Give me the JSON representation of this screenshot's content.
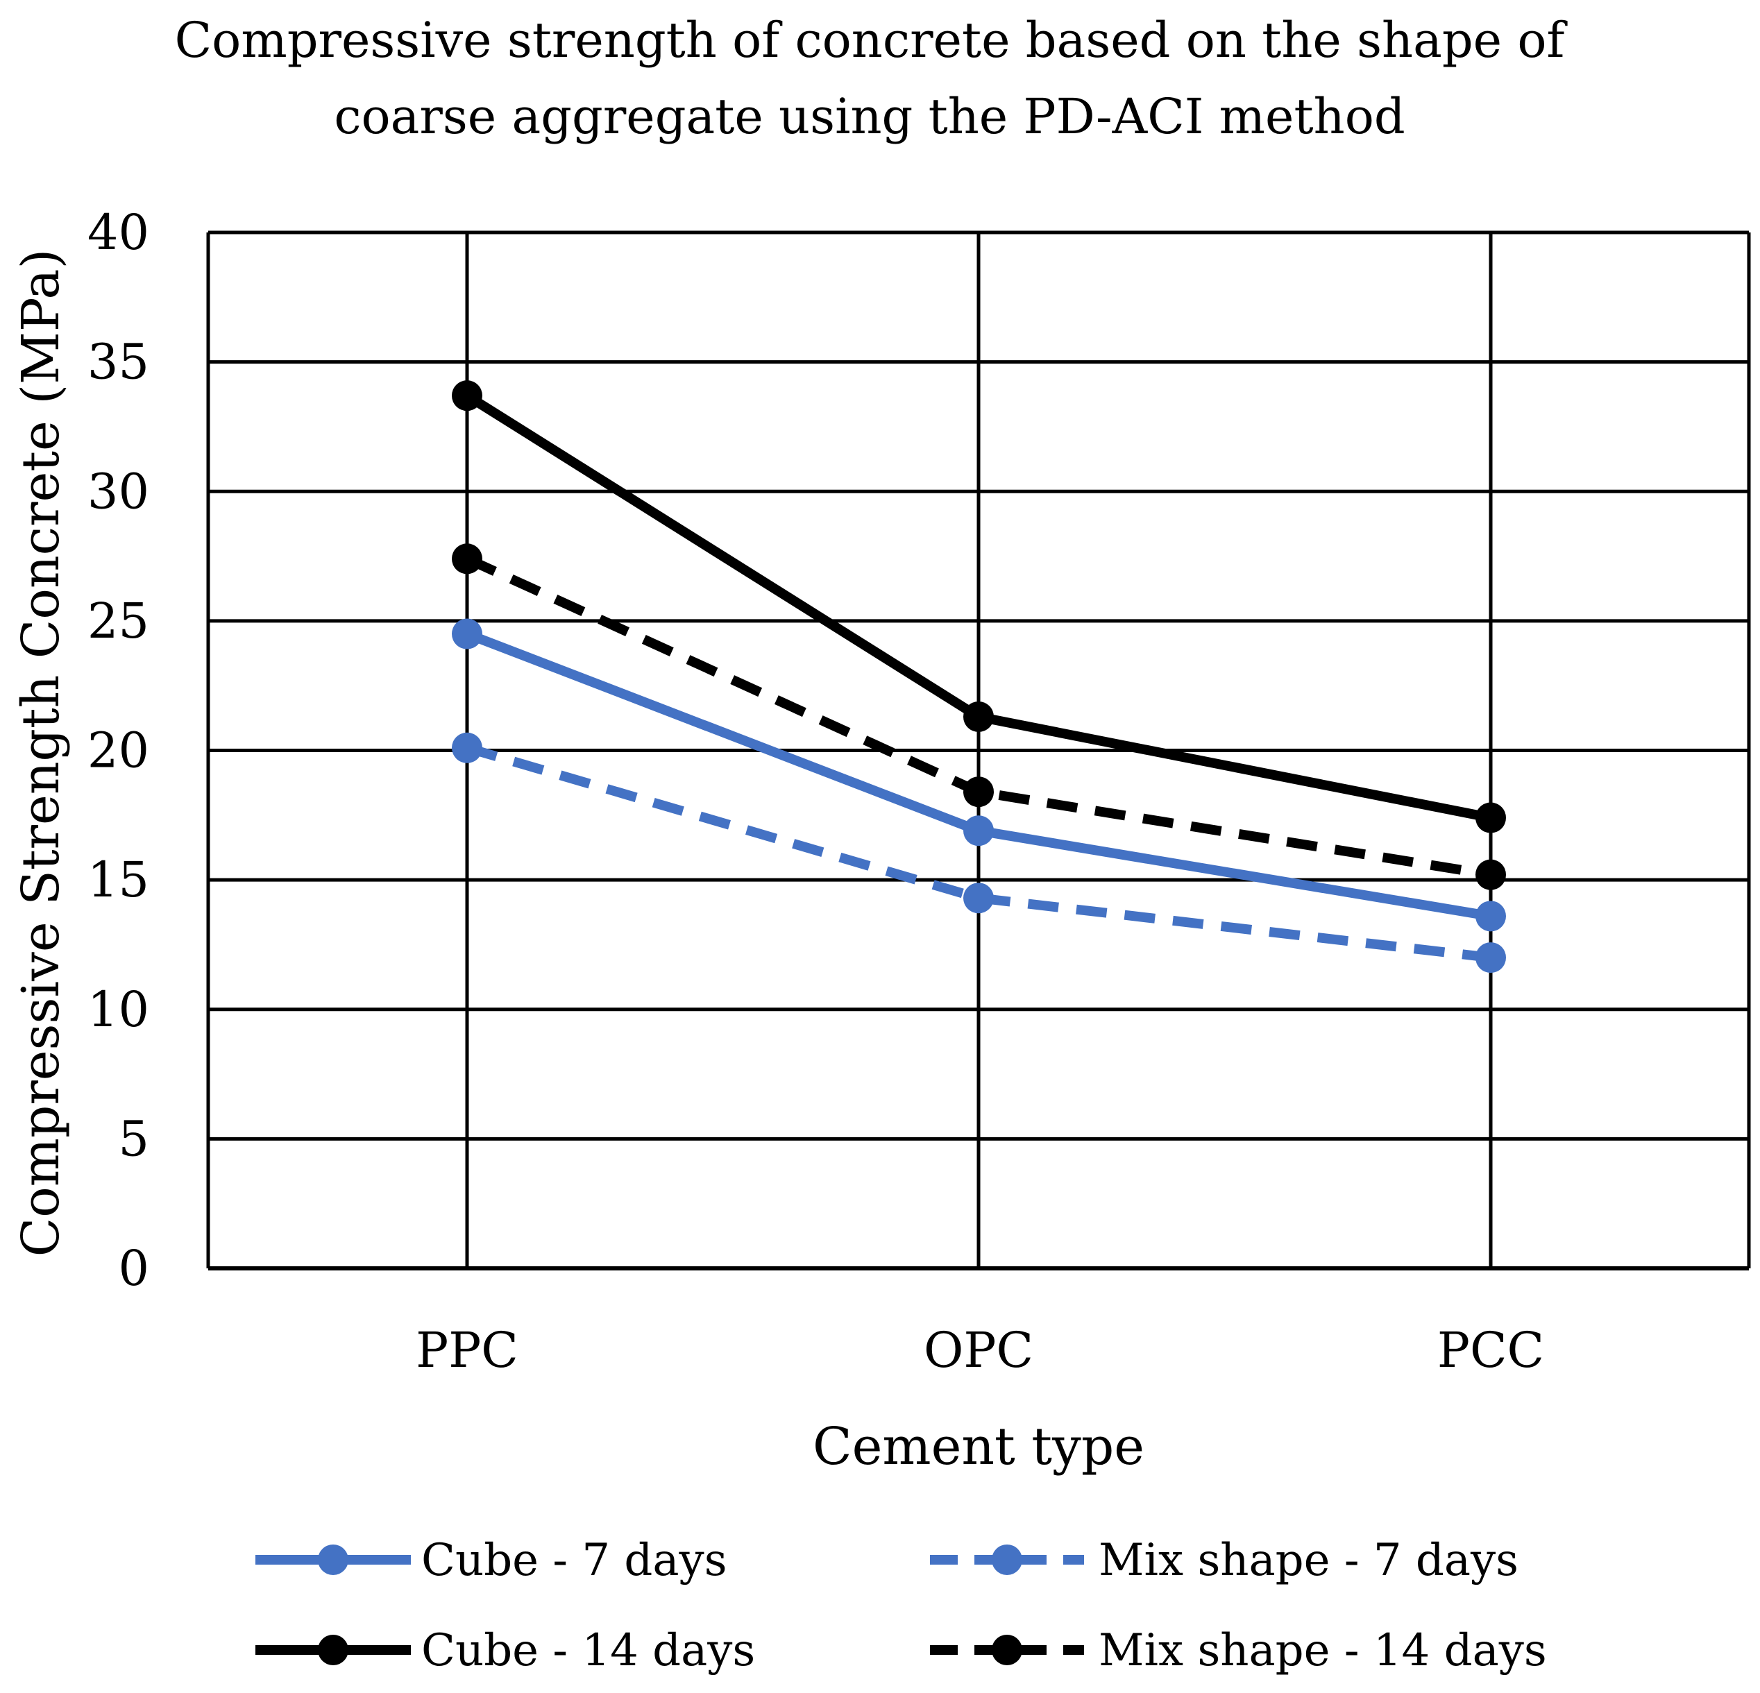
{
  "chart_data": {
    "type": "line",
    "title": "Compressive strength of concrete based on the shape of coarse aggregate using the PD-ACI method",
    "title_lines": [
      "Compressive strength of concrete based on the shape of",
      "coarse aggregate using the PD-ACI method"
    ],
    "xlabel": "Cement type",
    "ylabel": "Compressive Strength Concrete (MPa)",
    "categories": [
      "PPC",
      "OPC",
      "PCC"
    ],
    "ylim": [
      0,
      40
    ],
    "yticks": [
      0,
      5,
      10,
      15,
      20,
      25,
      30,
      35,
      40
    ],
    "grid": true,
    "legend_position": "bottom",
    "series": [
      {
        "name": "Cube - 7 days",
        "values": [
          24.5,
          16.9,
          13.6
        ],
        "color": "#4472C4",
        "dash": "solid"
      },
      {
        "name": "Mix shape - 7 days",
        "values": [
          20.1,
          14.3,
          12.0
        ],
        "color": "#4472C4",
        "dash": "dashed"
      },
      {
        "name": "Cube - 14 days",
        "values": [
          33.7,
          21.3,
          17.4
        ],
        "color": "#000000",
        "dash": "solid"
      },
      {
        "name": "Mix shape - 14 days",
        "values": [
          27.4,
          18.4,
          15.2
        ],
        "color": "#000000",
        "dash": "dashed"
      }
    ]
  }
}
